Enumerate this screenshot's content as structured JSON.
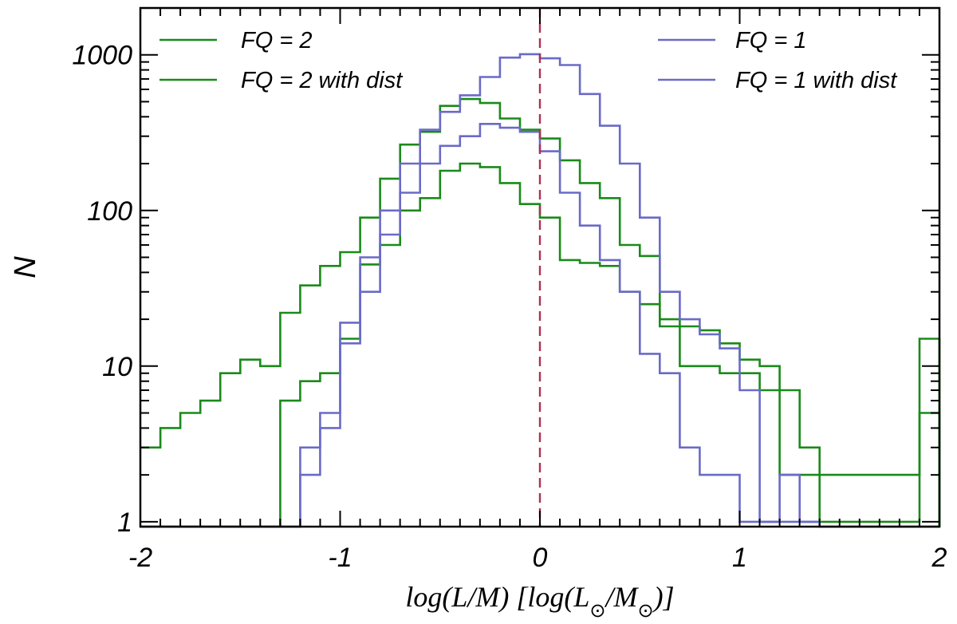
{
  "chart_data": {
    "type": "histogram-step",
    "title": "",
    "xlabel": "log(L/M) [log(L⊙/M⊙)]",
    "ylabel": "N",
    "xlim": [
      -2,
      2
    ],
    "ylim": [
      0.93,
      2000
    ],
    "yscale": "log",
    "xticks": [
      {
        "value": -2,
        "label": "-2"
      },
      {
        "value": -1,
        "label": "-1"
      },
      {
        "value": 0,
        "label": "0"
      },
      {
        "value": 1,
        "label": "1"
      },
      {
        "value": 2,
        "label": "2"
      }
    ],
    "yticks": [
      {
        "value": 1,
        "label": "1"
      },
      {
        "value": 10,
        "label": "10"
      },
      {
        "value": 100,
        "label": "100"
      },
      {
        "value": 1000,
        "label": "1000"
      }
    ],
    "bin_width": 0.1,
    "bin_start": -2.0,
    "reference_line": {
      "x": 0,
      "style": "dashed",
      "color": "#b03050"
    },
    "colors": {
      "fq2": "#1a8a1a",
      "fq1": "#6a6ac8"
    },
    "series": [
      {
        "name": "FQ = 2",
        "color": "#1a8a1a",
        "values": [
          3,
          4,
          5,
          6,
          9,
          11,
          10,
          22,
          33,
          44,
          54,
          90,
          160,
          265,
          320,
          470,
          520,
          490,
          390,
          330,
          290,
          210,
          150,
          120,
          60,
          51,
          20,
          18,
          17,
          14,
          11,
          10,
          2,
          2,
          2,
          2,
          2,
          2,
          2,
          15
        ]
      },
      {
        "name": "FQ = 2 with dist",
        "color": "#1a8a1a",
        "values": [
          0,
          0,
          0,
          0,
          0,
          0,
          0,
          6,
          8,
          9,
          15,
          45,
          60,
          100,
          120,
          180,
          200,
          190,
          150,
          110,
          90,
          48,
          46,
          44,
          30,
          25,
          18,
          10,
          10,
          9,
          9,
          7,
          7,
          3,
          1,
          1,
          1,
          1,
          1,
          5
        ]
      },
      {
        "name": "FQ = 1",
        "color": "#6a6ac8",
        "values": [
          0,
          0,
          0,
          0,
          0,
          0,
          0,
          0,
          3,
          5,
          19,
          50,
          100,
          200,
          330,
          430,
          550,
          720,
          960,
          1010,
          950,
          860,
          560,
          350,
          200,
          90,
          30,
          20,
          16,
          13,
          7,
          1,
          2,
          1,
          0,
          0,
          0,
          0,
          0,
          0
        ]
      },
      {
        "name": "FQ = 1 with dist",
        "color": "#6a6ac8",
        "values": [
          0,
          0,
          0,
          0,
          0,
          0,
          0,
          0,
          2,
          4,
          14,
          30,
          70,
          130,
          200,
          260,
          300,
          360,
          340,
          320,
          240,
          130,
          80,
          48,
          30,
          12,
          9,
          3,
          2,
          2,
          1,
          1,
          1,
          1,
          0,
          0,
          0,
          0,
          0,
          0
        ]
      }
    ],
    "legend": {
      "left": [
        {
          "label": "FQ = 2",
          "color": "#1a8a1a"
        },
        {
          "label": "FQ = 2 with dist",
          "color": "#1a8a1a"
        }
      ],
      "right": [
        {
          "label": "FQ = 1",
          "color": "#6a6ac8"
        },
        {
          "label": "FQ = 1 with dist",
          "color": "#6a6ac8"
        }
      ]
    }
  }
}
